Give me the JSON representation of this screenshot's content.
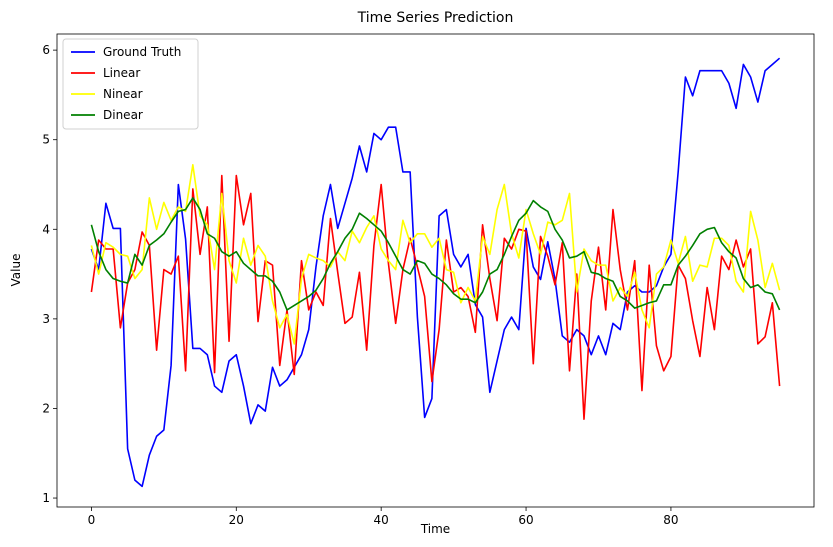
{
  "chart_data": {
    "type": "line",
    "title": "Time Series Prediction",
    "xlabel": "Time",
    "ylabel": "Value",
    "xlim": [
      -4.75,
      99.75
    ],
    "ylim": [
      0.9,
      6.18
    ],
    "xticks": [
      0,
      20,
      40,
      60,
      80
    ],
    "yticks": [
      1,
      2,
      3,
      4,
      5,
      6
    ],
    "grid": false,
    "legend_position": "top-left",
    "x": [
      0,
      1,
      2,
      3,
      4,
      5,
      6,
      7,
      8,
      9,
      10,
      11,
      12,
      13,
      14,
      15,
      16,
      17,
      18,
      19,
      20,
      21,
      22,
      23,
      24,
      25,
      26,
      27,
      28,
      29,
      30,
      31,
      32,
      33,
      34,
      35,
      36,
      37,
      38,
      39,
      40,
      41,
      42,
      43,
      44,
      45,
      46,
      47,
      48,
      49,
      50,
      51,
      52,
      53,
      54,
      55,
      56,
      57,
      58,
      59,
      60,
      61,
      62,
      63,
      64,
      65,
      66,
      67,
      68,
      69,
      70,
      71,
      72,
      73,
      74,
      75,
      76,
      77,
      78,
      79,
      80,
      81,
      82,
      83,
      84,
      85,
      86,
      87,
      88,
      89,
      90,
      91,
      92,
      93,
      94,
      95
    ],
    "series": [
      {
        "name": "Ground Truth",
        "color": "#0000ff",
        "values": [
          3.78,
          3.55,
          4.29,
          4.01,
          4.01,
          1.55,
          1.2,
          1.13,
          1.48,
          1.69,
          1.76,
          2.48,
          4.5,
          3.89,
          2.67,
          2.67,
          2.6,
          2.25,
          2.18,
          2.53,
          2.6,
          2.25,
          1.83,
          2.04,
          1.97,
          2.46,
          2.25,
          2.32,
          2.46,
          2.6,
          2.88,
          3.58,
          4.15,
          4.5,
          4.01,
          4.29,
          4.57,
          4.93,
          4.64,
          5.07,
          5.0,
          5.14,
          5.14,
          4.64,
          4.64,
          3.02,
          1.9,
          2.11,
          4.15,
          4.22,
          3.72,
          3.58,
          3.72,
          3.16,
          3.02,
          2.18,
          2.53,
          2.88,
          3.02,
          2.88,
          4.01,
          3.58,
          3.44,
          3.86,
          3.44,
          2.81,
          2.74,
          2.88,
          2.81,
          2.6,
          2.81,
          2.6,
          2.95,
          2.88,
          3.3,
          3.37,
          3.3,
          3.3,
          3.37,
          3.58,
          3.72,
          4.64,
          5.7,
          5.49,
          5.77,
          5.77,
          5.77,
          5.77,
          5.63,
          5.35,
          5.84,
          5.7,
          5.42,
          5.77,
          5.84,
          5.91
        ]
      },
      {
        "name": "Linear",
        "color": "#ff0000",
        "values": [
          3.3,
          3.88,
          3.78,
          3.78,
          2.9,
          3.4,
          3.55,
          3.97,
          3.82,
          2.65,
          3.55,
          3.5,
          3.7,
          2.42,
          4.45,
          3.72,
          4.25,
          2.4,
          4.6,
          2.75,
          4.6,
          4.05,
          4.4,
          2.97,
          3.65,
          3.6,
          2.48,
          3.1,
          2.38,
          3.65,
          3.1,
          3.3,
          3.15,
          4.12,
          3.52,
          2.95,
          3.02,
          3.52,
          2.65,
          3.82,
          4.5,
          3.62,
          2.95,
          3.55,
          3.9,
          3.58,
          3.25,
          2.3,
          2.88,
          3.88,
          3.3,
          3.35,
          3.25,
          2.85,
          4.05,
          3.45,
          2.98,
          3.9,
          3.78,
          4.0,
          3.98,
          2.5,
          3.92,
          3.7,
          3.38,
          3.85,
          2.42,
          3.5,
          1.88,
          3.2,
          3.8,
          3.1,
          4.22,
          3.55,
          3.1,
          3.65,
          2.2,
          3.6,
          2.7,
          2.42,
          2.58,
          3.6,
          3.45,
          2.98,
          2.58,
          3.35,
          2.88,
          3.7,
          3.55,
          3.88,
          3.58,
          3.78,
          2.72,
          2.8,
          3.18,
          2.25
        ]
      },
      {
        "name": "Ninear",
        "color": "#ffff00",
        "values": [
          3.82,
          3.5,
          3.85,
          3.8,
          3.72,
          3.7,
          3.45,
          3.55,
          4.35,
          4.0,
          4.3,
          4.1,
          4.25,
          4.2,
          4.72,
          4.15,
          4.05,
          3.55,
          4.4,
          3.65,
          3.4,
          3.9,
          3.6,
          3.82,
          3.7,
          3.2,
          2.9,
          3.05,
          2.72,
          3.45,
          3.72,
          3.68,
          3.65,
          3.58,
          3.75,
          3.65,
          3.98,
          3.85,
          4.02,
          4.15,
          3.78,
          3.65,
          3.55,
          4.1,
          3.85,
          3.95,
          3.95,
          3.8,
          3.9,
          3.55,
          3.52,
          3.18,
          3.35,
          3.2,
          3.92,
          3.72,
          4.22,
          4.5,
          3.95,
          3.68,
          4.22,
          3.95,
          3.72,
          4.08,
          4.05,
          4.1,
          4.4,
          3.3,
          3.78,
          3.65,
          3.6,
          3.6,
          3.2,
          3.35,
          3.25,
          3.52,
          3.1,
          2.9,
          3.5,
          3.58,
          3.88,
          3.62,
          3.92,
          3.42,
          3.6,
          3.58,
          3.9,
          3.9,
          3.82,
          3.42,
          3.3,
          4.2,
          3.88,
          3.35,
          3.62,
          3.32
        ]
      },
      {
        "name": "Dinear",
        "color": "#008000",
        "values": [
          4.05,
          3.75,
          3.55,
          3.45,
          3.42,
          3.4,
          3.72,
          3.6,
          3.82,
          3.88,
          3.95,
          4.08,
          4.2,
          4.22,
          4.35,
          4.22,
          3.95,
          3.9,
          3.75,
          3.7,
          3.75,
          3.62,
          3.55,
          3.48,
          3.48,
          3.42,
          3.3,
          3.1,
          3.15,
          3.2,
          3.25,
          3.32,
          3.45,
          3.62,
          3.75,
          3.9,
          4.0,
          4.18,
          4.12,
          4.05,
          3.98,
          3.85,
          3.7,
          3.55,
          3.5,
          3.65,
          3.62,
          3.5,
          3.45,
          3.38,
          3.28,
          3.22,
          3.22,
          3.18,
          3.3,
          3.5,
          3.55,
          3.72,
          3.92,
          4.1,
          4.18,
          4.32,
          4.25,
          4.2,
          4.0,
          3.88,
          3.68,
          3.7,
          3.75,
          3.52,
          3.5,
          3.45,
          3.42,
          3.25,
          3.2,
          3.12,
          3.15,
          3.18,
          3.2,
          3.38,
          3.38,
          3.6,
          3.7,
          3.82,
          3.95,
          4.0,
          4.02,
          3.85,
          3.75,
          3.68,
          3.45,
          3.35,
          3.38,
          3.3,
          3.28,
          3.1
        ]
      }
    ]
  }
}
